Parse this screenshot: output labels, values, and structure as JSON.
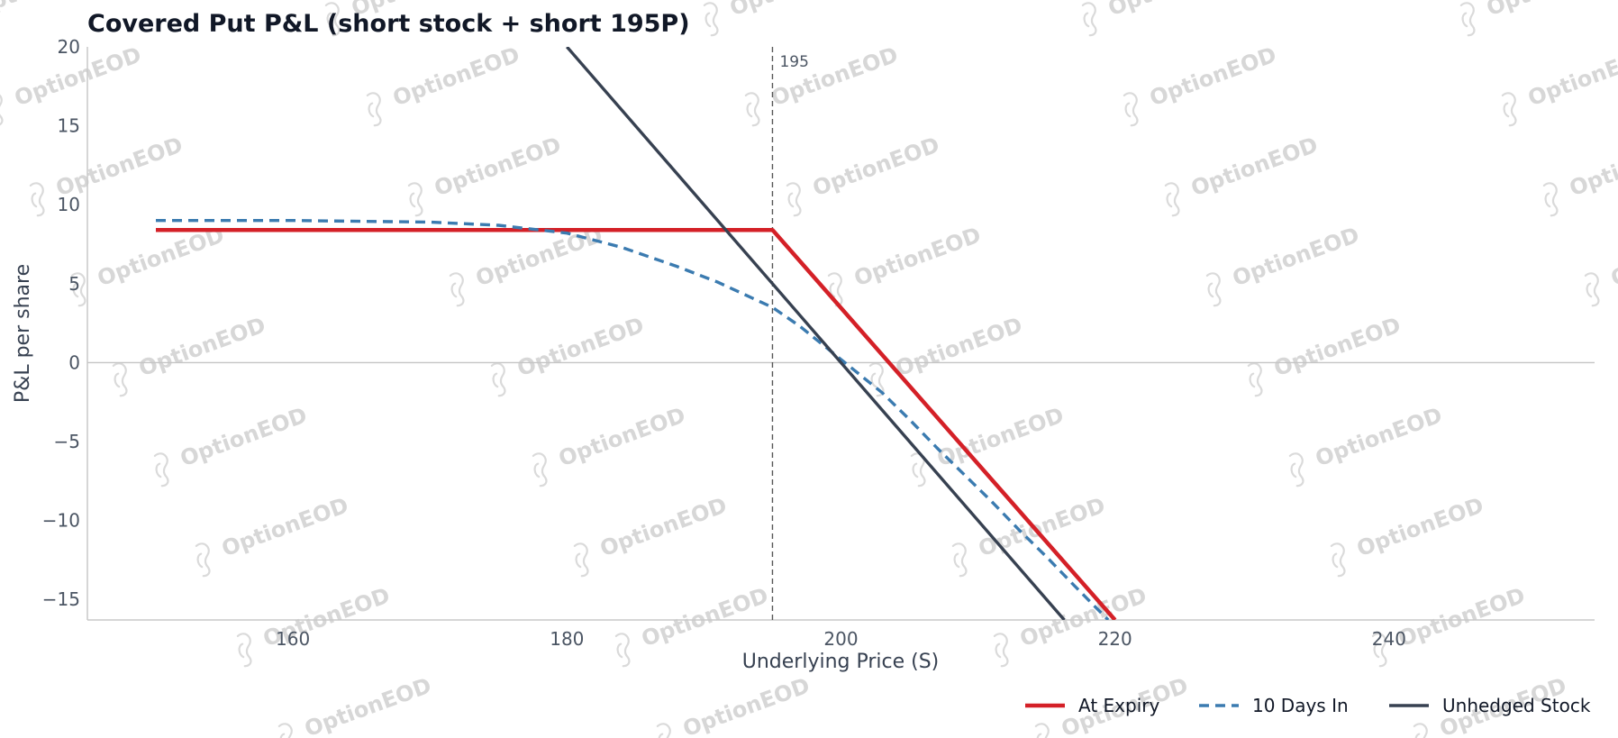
{
  "watermark": {
    "text": "OptionEOD",
    "icon": "seahorse-logo-icon"
  },
  "chart_data": {
    "type": "line",
    "title": "Covered Put P&L (short stock + short 195P)",
    "xlabel": "Underlying Price (S)",
    "ylabel": "P&L per share",
    "xlim": [
      145,
      255
    ],
    "ylim": [
      -16.3,
      20
    ],
    "xticks": [
      160,
      180,
      200,
      220,
      240
    ],
    "yticks": [
      -15,
      -10,
      -5,
      0,
      5,
      10,
      15,
      20
    ],
    "xtick_labels": [
      "160",
      "180",
      "200",
      "220",
      "240"
    ],
    "ytick_labels": [
      "−15",
      "−10",
      "−5",
      "0",
      "5",
      "10",
      "15",
      "20"
    ],
    "grid": false,
    "legend_position": "bottom-right",
    "zero_line": 0,
    "strike": {
      "x": 195,
      "label": "195"
    },
    "series": [
      {
        "name": "At Expiry",
        "color": "#d42027",
        "style": "solid",
        "points": [
          [
            150,
            8.4
          ],
          [
            195,
            8.4
          ],
          [
            220,
            -16.3
          ]
        ]
      },
      {
        "name": "10 Days In",
        "color": "#3b7bb0",
        "style": "dashed",
        "points": [
          [
            150,
            9.0
          ],
          [
            160,
            9.0
          ],
          [
            170,
            8.9
          ],
          [
            175,
            8.7
          ],
          [
            180,
            8.2
          ],
          [
            184,
            7.3
          ],
          [
            188,
            6.1
          ],
          [
            191,
            5.1
          ],
          [
            193,
            4.3
          ],
          [
            195,
            3.5
          ],
          [
            197,
            2.3
          ],
          [
            199,
            0.9
          ],
          [
            201,
            -0.5
          ],
          [
            203,
            -1.9
          ],
          [
            205,
            -3.6
          ],
          [
            207,
            -5.4
          ],
          [
            209,
            -7.1
          ],
          [
            211,
            -8.8
          ],
          [
            213,
            -10.6
          ],
          [
            215,
            -12.3
          ],
          [
            217,
            -14.1
          ],
          [
            219.5,
            -16.3
          ]
        ]
      },
      {
        "name": "Unhedged Stock",
        "color": "#374151",
        "style": "solid",
        "points": [
          [
            180,
            20
          ],
          [
            216.3,
            -16.3
          ]
        ]
      }
    ]
  }
}
